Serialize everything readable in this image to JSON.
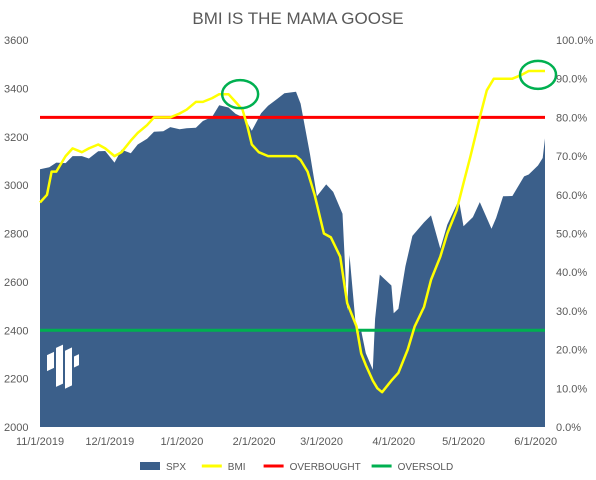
{
  "chart_data": {
    "type": "area",
    "title": "BMI IS THE MAMA GOOSE",
    "x_start": "11/1/2019",
    "x_end": "6/5/2020",
    "x_tick_labels": [
      "11/1/2019",
      "12/1/2019",
      "1/1/2020",
      "2/1/2020",
      "3/1/2020",
      "4/1/2020",
      "5/1/2020",
      "6/1/2020"
    ],
    "x_tick_dates": [
      "2019-11-01",
      "2019-12-01",
      "2020-01-01",
      "2020-02-01",
      "2020-03-01",
      "2020-04-01",
      "2020-05-01",
      "2020-06-01"
    ],
    "y_left": {
      "min": 2000,
      "max": 3600,
      "ticks": [
        "2000",
        "2200",
        "2400",
        "2600",
        "2800",
        "3000",
        "3200",
        "3400",
        "3600"
      ]
    },
    "y_right": {
      "min": 0,
      "max": 100,
      "ticks": [
        "0.0%",
        "10.0%",
        "20.0%",
        "30.0%",
        "40.0%",
        "50.0%",
        "60.0%",
        "70.0%",
        "80.0%",
        "90.0%",
        "100.0%"
      ]
    },
    "legend_position": "bottom",
    "grid": false,
    "series": [
      {
        "name": "SPX",
        "kind": "area",
        "axis": "left",
        "color": "#3b5f8a",
        "points": [
          [
            "2019-11-01",
            3066
          ],
          [
            "2019-11-05",
            3074
          ],
          [
            "2019-11-08",
            3093
          ],
          [
            "2019-11-12",
            3091
          ],
          [
            "2019-11-15",
            3120
          ],
          [
            "2019-11-19",
            3120
          ],
          [
            "2019-11-22",
            3110
          ],
          [
            "2019-11-26",
            3140
          ],
          [
            "2019-11-29",
            3141
          ],
          [
            "2019-12-03",
            3093
          ],
          [
            "2019-12-06",
            3146
          ],
          [
            "2019-12-10",
            3132
          ],
          [
            "2019-12-13",
            3168
          ],
          [
            "2019-12-17",
            3192
          ],
          [
            "2019-12-20",
            3221
          ],
          [
            "2019-12-24",
            3223
          ],
          [
            "2019-12-27",
            3240
          ],
          [
            "2019-12-31",
            3231
          ],
          [
            "2020-01-03",
            3235
          ],
          [
            "2020-01-07",
            3237
          ],
          [
            "2020-01-10",
            3265
          ],
          [
            "2020-01-14",
            3283
          ],
          [
            "2020-01-17",
            3330
          ],
          [
            "2020-01-21",
            3321
          ],
          [
            "2020-01-24",
            3295
          ],
          [
            "2020-01-28",
            3276
          ],
          [
            "2020-01-31",
            3225
          ],
          [
            "2020-02-04",
            3297
          ],
          [
            "2020-02-07",
            3328
          ],
          [
            "2020-02-11",
            3357
          ],
          [
            "2020-02-14",
            3380
          ],
          [
            "2020-02-19",
            3386
          ],
          [
            "2020-02-21",
            3337
          ],
          [
            "2020-02-25",
            3128
          ],
          [
            "2020-02-28",
            2954
          ],
          [
            "2020-03-03",
            3003
          ],
          [
            "2020-03-06",
            2972
          ],
          [
            "2020-03-10",
            2882
          ],
          [
            "2020-03-12",
            2480
          ],
          [
            "2020-03-13",
            2711
          ],
          [
            "2020-03-16",
            2386
          ],
          [
            "2020-03-18",
            2398
          ],
          [
            "2020-03-20",
            2305
          ],
          [
            "2020-03-23",
            2237
          ],
          [
            "2020-03-24",
            2447
          ],
          [
            "2020-03-26",
            2630
          ],
          [
            "2020-03-31",
            2585
          ],
          [
            "2020-04-01",
            2470
          ],
          [
            "2020-04-03",
            2489
          ],
          [
            "2020-04-06",
            2664
          ],
          [
            "2020-04-09",
            2790
          ],
          [
            "2020-04-14",
            2846
          ],
          [
            "2020-04-17",
            2875
          ],
          [
            "2020-04-21",
            2737
          ],
          [
            "2020-04-24",
            2837
          ],
          [
            "2020-04-29",
            2939
          ],
          [
            "2020-05-01",
            2830
          ],
          [
            "2020-05-05",
            2868
          ],
          [
            "2020-05-08",
            2930
          ],
          [
            "2020-05-13",
            2820
          ],
          [
            "2020-05-15",
            2864
          ],
          [
            "2020-05-18",
            2954
          ],
          [
            "2020-05-22",
            2955
          ],
          [
            "2020-05-27",
            3036
          ],
          [
            "2020-05-29",
            3044
          ],
          [
            "2020-06-02",
            3081
          ],
          [
            "2020-06-04",
            3112
          ],
          [
            "2020-06-05",
            3193
          ]
        ]
      },
      {
        "name": "BMI",
        "kind": "line",
        "axis": "right",
        "color": "#ffff00",
        "points": [
          [
            "2019-11-01",
            58
          ],
          [
            "2019-11-04",
            60
          ],
          [
            "2019-11-06",
            66
          ],
          [
            "2019-11-08",
            66
          ],
          [
            "2019-11-12",
            70
          ],
          [
            "2019-11-15",
            72
          ],
          [
            "2019-11-19",
            71
          ],
          [
            "2019-11-22",
            72
          ],
          [
            "2019-11-26",
            73
          ],
          [
            "2019-11-29",
            72
          ],
          [
            "2019-12-03",
            70
          ],
          [
            "2019-12-06",
            71
          ],
          [
            "2019-12-10",
            74
          ],
          [
            "2019-12-13",
            76
          ],
          [
            "2019-12-17",
            78
          ],
          [
            "2019-12-20",
            80
          ],
          [
            "2019-12-24",
            80
          ],
          [
            "2019-12-27",
            80
          ],
          [
            "2019-12-31",
            81
          ],
          [
            "2020-01-03",
            82
          ],
          [
            "2020-01-07",
            84
          ],
          [
            "2020-01-10",
            84
          ],
          [
            "2020-01-14",
            85
          ],
          [
            "2020-01-17",
            86
          ],
          [
            "2020-01-21",
            86
          ],
          [
            "2020-01-24",
            84
          ],
          [
            "2020-01-27",
            82
          ],
          [
            "2020-01-29",
            78
          ],
          [
            "2020-01-31",
            73
          ],
          [
            "2020-02-03",
            71
          ],
          [
            "2020-02-07",
            70
          ],
          [
            "2020-02-11",
            70
          ],
          [
            "2020-02-14",
            70
          ],
          [
            "2020-02-19",
            70
          ],
          [
            "2020-02-21",
            69
          ],
          [
            "2020-02-24",
            66
          ],
          [
            "2020-02-27",
            60
          ],
          [
            "2020-03-02",
            50
          ],
          [
            "2020-03-05",
            49
          ],
          [
            "2020-03-09",
            44
          ],
          [
            "2020-03-12",
            32
          ],
          [
            "2020-03-16",
            26
          ],
          [
            "2020-03-18",
            19
          ],
          [
            "2020-03-20",
            16
          ],
          [
            "2020-03-23",
            12
          ],
          [
            "2020-03-25",
            10
          ],
          [
            "2020-03-27",
            9
          ],
          [
            "2020-03-31",
            12
          ],
          [
            "2020-04-03",
            14
          ],
          [
            "2020-04-07",
            20
          ],
          [
            "2020-04-10",
            26
          ],
          [
            "2020-04-14",
            31
          ],
          [
            "2020-04-17",
            38
          ],
          [
            "2020-04-21",
            44
          ],
          [
            "2020-04-24",
            50
          ],
          [
            "2020-04-28",
            56
          ],
          [
            "2020-05-01",
            63
          ],
          [
            "2020-05-04",
            70
          ],
          [
            "2020-05-06",
            75
          ],
          [
            "2020-05-08",
            80
          ],
          [
            "2020-05-11",
            87
          ],
          [
            "2020-05-14",
            90
          ],
          [
            "2020-05-19",
            90
          ],
          [
            "2020-05-22",
            90
          ],
          [
            "2020-05-26",
            91
          ],
          [
            "2020-05-29",
            92
          ],
          [
            "2020-06-01",
            92
          ],
          [
            "2020-06-03",
            92
          ],
          [
            "2020-06-05",
            92
          ]
        ]
      },
      {
        "name": "OVERBOUGHT",
        "kind": "hline",
        "axis": "right",
        "color": "#ff0000",
        "value": 80
      },
      {
        "name": "OVERSOLD",
        "kind": "hline",
        "axis": "right",
        "color": "#00b050",
        "value": 25
      }
    ],
    "annotations": [
      {
        "type": "circle",
        "color": "#00b050",
        "date": "2020-01-26",
        "value": 86
      },
      {
        "type": "circle",
        "color": "#00b050",
        "date": "2020-06-02",
        "value": 91
      }
    ]
  }
}
